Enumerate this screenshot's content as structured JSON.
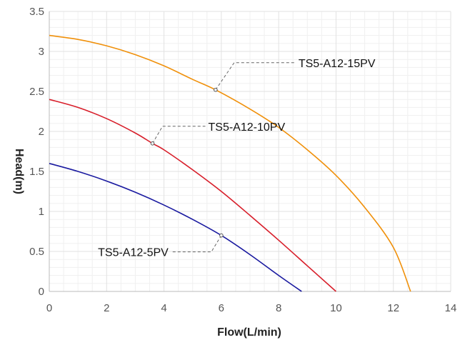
{
  "chart_data": {
    "type": "line",
    "xlabel": "Flow(L/min)",
    "ylabel": "Head(m)",
    "xlim": [
      0,
      14
    ],
    "ylim": [
      0,
      3.5
    ],
    "xticks": [
      "0",
      "2",
      "4",
      "6",
      "8",
      "10",
      "12",
      "14"
    ],
    "yticks": [
      "0",
      "0.5",
      "1",
      "1.5",
      "2",
      "2.5",
      "3",
      "3.5"
    ],
    "grid": true,
    "series": [
      {
        "name": "TS5-A12-15PV",
        "color": "#F0900A",
        "x": [
          0,
          1,
          2,
          3,
          4,
          5,
          5.8,
          7,
          8,
          9,
          10,
          11,
          12,
          12.6
        ],
        "y": [
          3.2,
          3.15,
          3.07,
          2.96,
          2.82,
          2.65,
          2.52,
          2.28,
          2.05,
          1.77,
          1.45,
          1.05,
          0.55,
          0
        ]
      },
      {
        "name": "TS5-A12-10PV",
        "color": "#D81E2A",
        "x": [
          0,
          1,
          2,
          3,
          3.6,
          4,
          5,
          6,
          7,
          8,
          9,
          10
        ],
        "y": [
          2.4,
          2.3,
          2.16,
          1.98,
          1.85,
          1.77,
          1.52,
          1.25,
          0.95,
          0.64,
          0.32,
          0
        ]
      },
      {
        "name": "TS5-A12-5PV",
        "color": "#1A1AA0",
        "x": [
          0,
          1,
          2,
          3,
          4,
          5,
          6,
          7,
          8,
          8.8
        ],
        "y": [
          1.6,
          1.5,
          1.38,
          1.24,
          1.08,
          0.9,
          0.7,
          0.46,
          0.2,
          0
        ]
      }
    ],
    "annotations": [
      {
        "series": 0,
        "point": [
          5.8,
          2.52
        ],
        "text": "TS5-A12-15PV"
      },
      {
        "series": 1,
        "point": [
          3.6,
          1.85
        ],
        "text": "TS5-A12-10PV"
      },
      {
        "series": 2,
        "point": [
          6.0,
          0.7
        ],
        "text": "TS5-A12-5PV"
      }
    ]
  }
}
